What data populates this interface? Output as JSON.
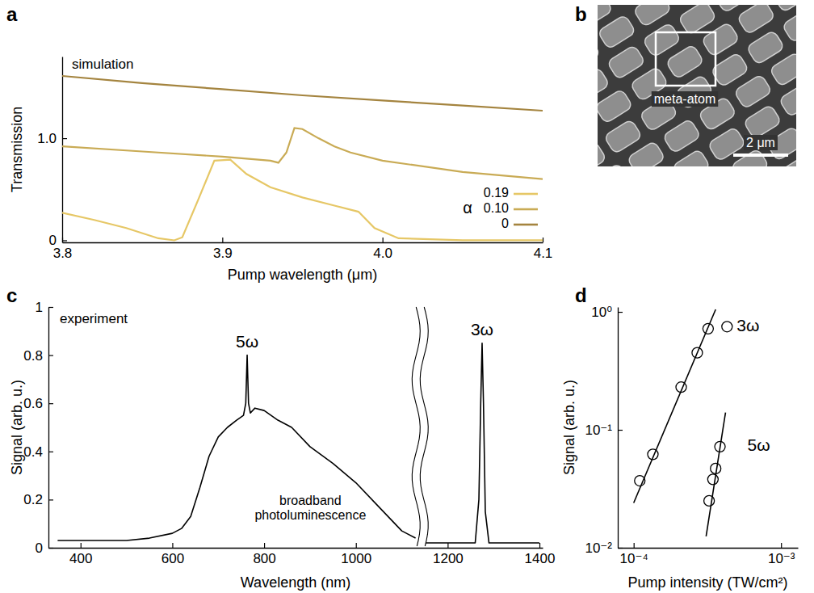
{
  "chart_data": [
    {
      "panel_label": "a",
      "type": "line",
      "annotation": "simulation",
      "x_label": "Pump wavelength (μm)",
      "y_label": "Transmission",
      "xlim": [
        3.8,
        4.1
      ],
      "xticks": [
        3.8,
        3.9,
        {
          "value": 4,
          "label": "4.0"
        },
        4.1
      ],
      "ylim": [
        -0.02,
        1.8
      ],
      "yticks": [
        0,
        {
          "value": 1,
          "label": "1.0"
        }
      ],
      "legend": "lower right",
      "legend_title": "α",
      "series": [
        {
          "name": "0.19",
          "color": "#e6c766",
          "x": [
            3.8,
            3.82,
            3.84,
            3.86,
            3.87,
            3.875,
            3.885,
            3.895,
            3.905,
            3.915,
            3.93,
            3.95,
            3.97,
            3.985,
            3.995,
            4.01,
            4.05,
            4.1
          ],
          "values": [
            0.27,
            0.2,
            0.12,
            0.02,
            0.0,
            0.03,
            0.4,
            0.78,
            0.79,
            0.65,
            0.52,
            0.42,
            0.34,
            0.28,
            0.12,
            0.02,
            0.0,
            0.0
          ]
        },
        {
          "name": "0.10",
          "color": "#c9ab55",
          "x": [
            3.8,
            3.85,
            3.9,
            3.93,
            3.935,
            3.94,
            3.945,
            3.95,
            3.96,
            3.97,
            3.98,
            4.0,
            4.05,
            4.1
          ],
          "values": [
            0.92,
            0.87,
            0.82,
            0.78,
            0.76,
            0.86,
            1.1,
            1.09,
            1.0,
            0.92,
            0.86,
            0.78,
            0.67,
            0.6
          ]
        },
        {
          "name": "0",
          "color": "#a4843f",
          "x": [
            3.8,
            3.85,
            3.9,
            3.95,
            4.0,
            4.05,
            4.1
          ],
          "values": [
            1.61,
            1.54,
            1.48,
            1.42,
            1.37,
            1.32,
            1.27
          ]
        }
      ]
    },
    {
      "panel_label": "c",
      "type": "line",
      "annotation": "experiment",
      "peak_labels": [
        "5ω",
        "3ω"
      ],
      "band_label": "broadband photoluminescence",
      "x_label": "Wavelength (nm)",
      "y_label": "Signal (arb. u.)",
      "color": "#000000",
      "xlim": [
        330,
        1407
      ],
      "xticks": [
        400,
        600,
        800,
        1000,
        1200,
        1400
      ],
      "ylim": [
        0,
        1
      ],
      "yticks": [
        0,
        0.2,
        0.4,
        0.6,
        0.8,
        1
      ],
      "x": [
        350,
        400,
        450,
        500,
        550,
        600,
        620,
        640,
        660,
        680,
        700,
        720,
        740,
        755,
        760,
        763,
        766,
        770,
        780,
        800,
        830,
        860,
        900,
        950,
        1000,
        1050,
        1100,
        1130,
        1135,
        1150,
        1200,
        1260,
        1268,
        1272,
        1275,
        1278,
        1282,
        1290,
        1350,
        1400
      ],
      "values": [
        0.03,
        0.03,
        0.03,
        0.03,
        0.04,
        0.06,
        0.08,
        0.13,
        0.25,
        0.38,
        0.46,
        0.5,
        0.53,
        0.55,
        0.6,
        0.8,
        0.6,
        0.56,
        0.58,
        0.57,
        0.53,
        0.5,
        0.42,
        0.35,
        0.27,
        0.17,
        0.07,
        0.04,
        null,
        0.02,
        0.02,
        0.02,
        0.2,
        0.6,
        0.85,
        0.6,
        0.15,
        0.02,
        0.02,
        0.02
      ]
    },
    {
      "panel_label": "d",
      "type": "scatter",
      "log": true,
      "x_label": "Pump intensity (TW/cm²)",
      "y_label": "Signal (arb. u.)",
      "xlim": [
        7.8e-05,
        0.0013
      ],
      "xticks": [
        {
          "value": 0.0001,
          "label": "10⁻⁴"
        },
        {
          "value": 0.001,
          "label": "10⁻³"
        }
      ],
      "ylim": [
        0.01,
        1.1
      ],
      "yticks": [
        {
          "value": 0.01,
          "label": "10⁻²"
        },
        {
          "value": 0.1,
          "label": "10⁻¹"
        },
        {
          "value": 1,
          "label": "10⁰"
        }
      ],
      "series": [
        {
          "name": "3ω",
          "color": "#000000",
          "marker": "circle",
          "x": [
            0.00011,
            0.000135,
            0.00021,
            0.00027,
            0.00032,
            0.00043
          ],
          "values": [
            0.037,
            0.062,
            0.23,
            0.45,
            0.72,
            0.75
          ],
          "fit": {
            "line_style": "solid",
            "x": [
              0.0001,
              0.00036
            ],
            "values": [
              0.024,
              1.05
            ]
          }
        },
        {
          "name": "5ω",
          "color": "#000000",
          "marker": "circle",
          "x": [
            0.000325,
            0.000345,
            0.00036,
            0.000385
          ],
          "values": [
            0.025,
            0.038,
            0.047,
            0.072
          ],
          "fit": {
            "line_style": "solid",
            "x": [
              0.00031,
              0.00042
            ],
            "values": [
              0.0125,
              0.14
            ]
          }
        }
      ]
    }
  ],
  "sem_image": {
    "panel_label": "b",
    "annotation": "meta-atom",
    "scale_bar": "2 μm"
  }
}
